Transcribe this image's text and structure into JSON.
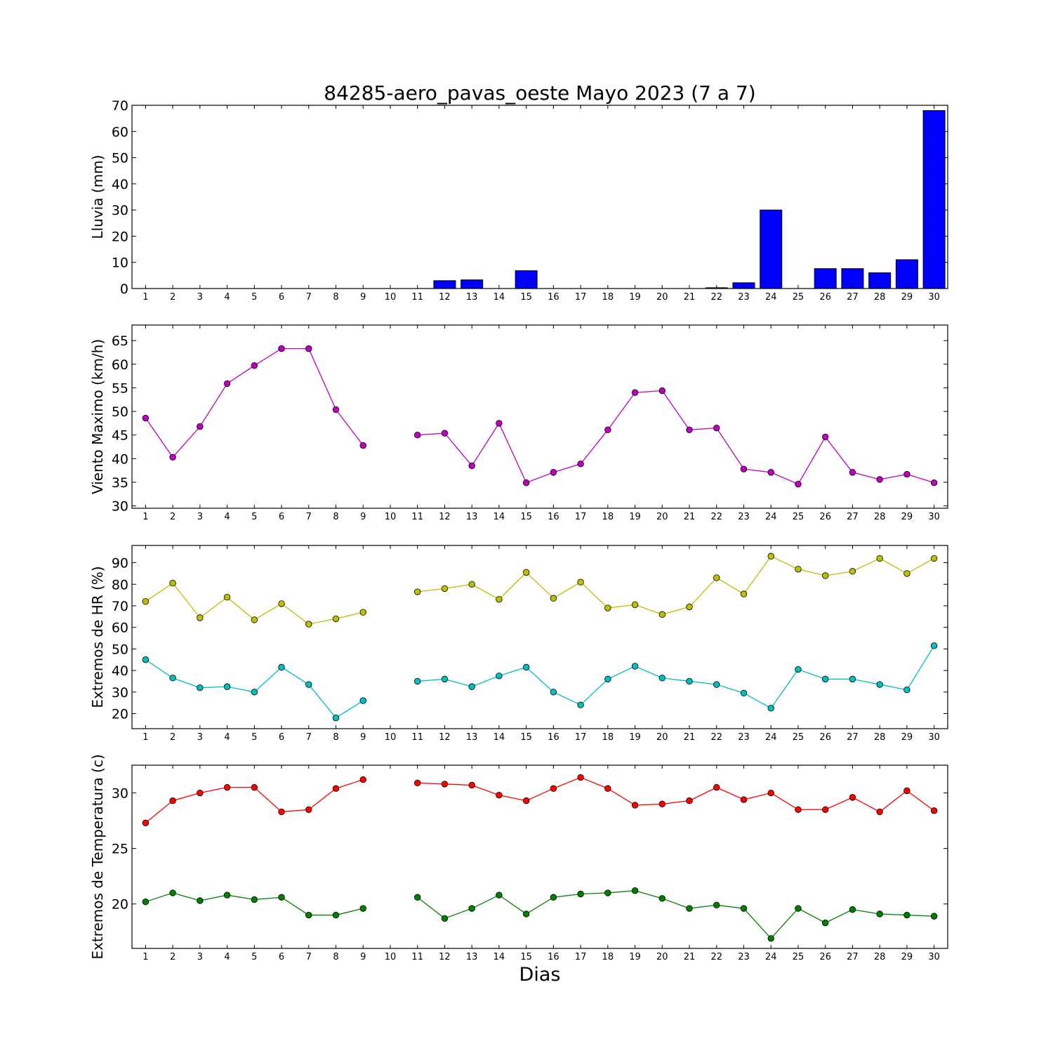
{
  "title": "84285-aero_pavas_oeste Mayo 2023  (7 a 7)",
  "xlabel": "Dias",
  "days": [
    1,
    2,
    3,
    4,
    5,
    6,
    7,
    8,
    9,
    10,
    11,
    12,
    13,
    14,
    15,
    16,
    17,
    18,
    19,
    20,
    21,
    22,
    23,
    24,
    25,
    26,
    27,
    28,
    29,
    30
  ],
  "chart_data": [
    {
      "type": "bar",
      "ylabel": "Lluvia (mm)",
      "ylim": [
        0,
        70
      ],
      "yticks": [
        0,
        10,
        20,
        30,
        40,
        50,
        60,
        70
      ],
      "series": [
        {
          "color": "#0000ff",
          "values": [
            0,
            0,
            0,
            0,
            0,
            0,
            0,
            0,
            0,
            0,
            0,
            3.0,
            3.3,
            0,
            6.8,
            0,
            0,
            0,
            0,
            0,
            0,
            0.3,
            2.2,
            30.0,
            0,
            7.6,
            7.6,
            6.0,
            11.0,
            68.0
          ]
        }
      ]
    },
    {
      "type": "line",
      "ylabel": "Viento Maximo (km/h)",
      "ylim": [
        29.5,
        68.3
      ],
      "yticks": [
        30,
        35,
        40,
        45,
        50,
        55,
        60,
        65
      ],
      "series": [
        {
          "color": "#bf00bf",
          "values": [
            48.6,
            40.3,
            46.8,
            55.9,
            59.7,
            63.3,
            63.3,
            50.4,
            42.8,
            null,
            45.0,
            45.4,
            38.5,
            47.5,
            34.9,
            37.1,
            38.9,
            46.1,
            54.0,
            54.4,
            46.1,
            46.5,
            37.8,
            37.1,
            34.6,
            44.6,
            37.1,
            35.6,
            36.7,
            34.9
          ]
        }
      ]
    },
    {
      "type": "line",
      "ylabel": "Extremos de HR (%)",
      "ylim": [
        13,
        98
      ],
      "yticks": [
        20,
        30,
        40,
        50,
        60,
        70,
        80,
        90
      ],
      "series": [
        {
          "color": "#bfbf00",
          "values": [
            72,
            80.5,
            64.5,
            74,
            63.5,
            71,
            61.5,
            64,
            67,
            null,
            76.5,
            78,
            80,
            73,
            85.5,
            73.5,
            81,
            69,
            70.5,
            66,
            69.5,
            83,
            75.5,
            93,
            87,
            84,
            86,
            92,
            85,
            92
          ]
        },
        {
          "color": "#00bfbf",
          "values": [
            45,
            36.5,
            32,
            32.5,
            30,
            41.5,
            33.5,
            18,
            26,
            null,
            35,
            36,
            32.5,
            37.5,
            41.5,
            30,
            24,
            36,
            42,
            36.5,
            35,
            33.5,
            29.5,
            22.5,
            40.5,
            36,
            36,
            33.5,
            31,
            51.5
          ]
        }
      ]
    },
    {
      "type": "line",
      "ylabel": "Extremos de Temperatura (c)",
      "ylim": [
        16,
        32.5
      ],
      "yticks": [
        20,
        25,
        30
      ],
      "series": [
        {
          "color": "#ff0000",
          "values": [
            27.3,
            29.3,
            30.0,
            30.5,
            30.5,
            28.3,
            28.5,
            30.4,
            31.2,
            null,
            30.9,
            30.8,
            30.7,
            29.8,
            29.3,
            30.4,
            31.4,
            30.4,
            28.9,
            29.0,
            29.3,
            30.5,
            29.4,
            30.0,
            28.5,
            28.5,
            29.6,
            28.3,
            30.2,
            28.4
          ]
        },
        {
          "color": "#008000",
          "values": [
            20.2,
            21.0,
            20.3,
            20.8,
            20.4,
            20.6,
            19.0,
            19.0,
            19.6,
            null,
            20.6,
            18.7,
            19.6,
            20.8,
            19.1,
            20.6,
            20.9,
            21.0,
            21.2,
            20.5,
            19.6,
            19.9,
            19.6,
            16.9,
            19.6,
            18.3,
            19.5,
            19.1,
            19.0,
            18.9
          ]
        }
      ]
    }
  ]
}
